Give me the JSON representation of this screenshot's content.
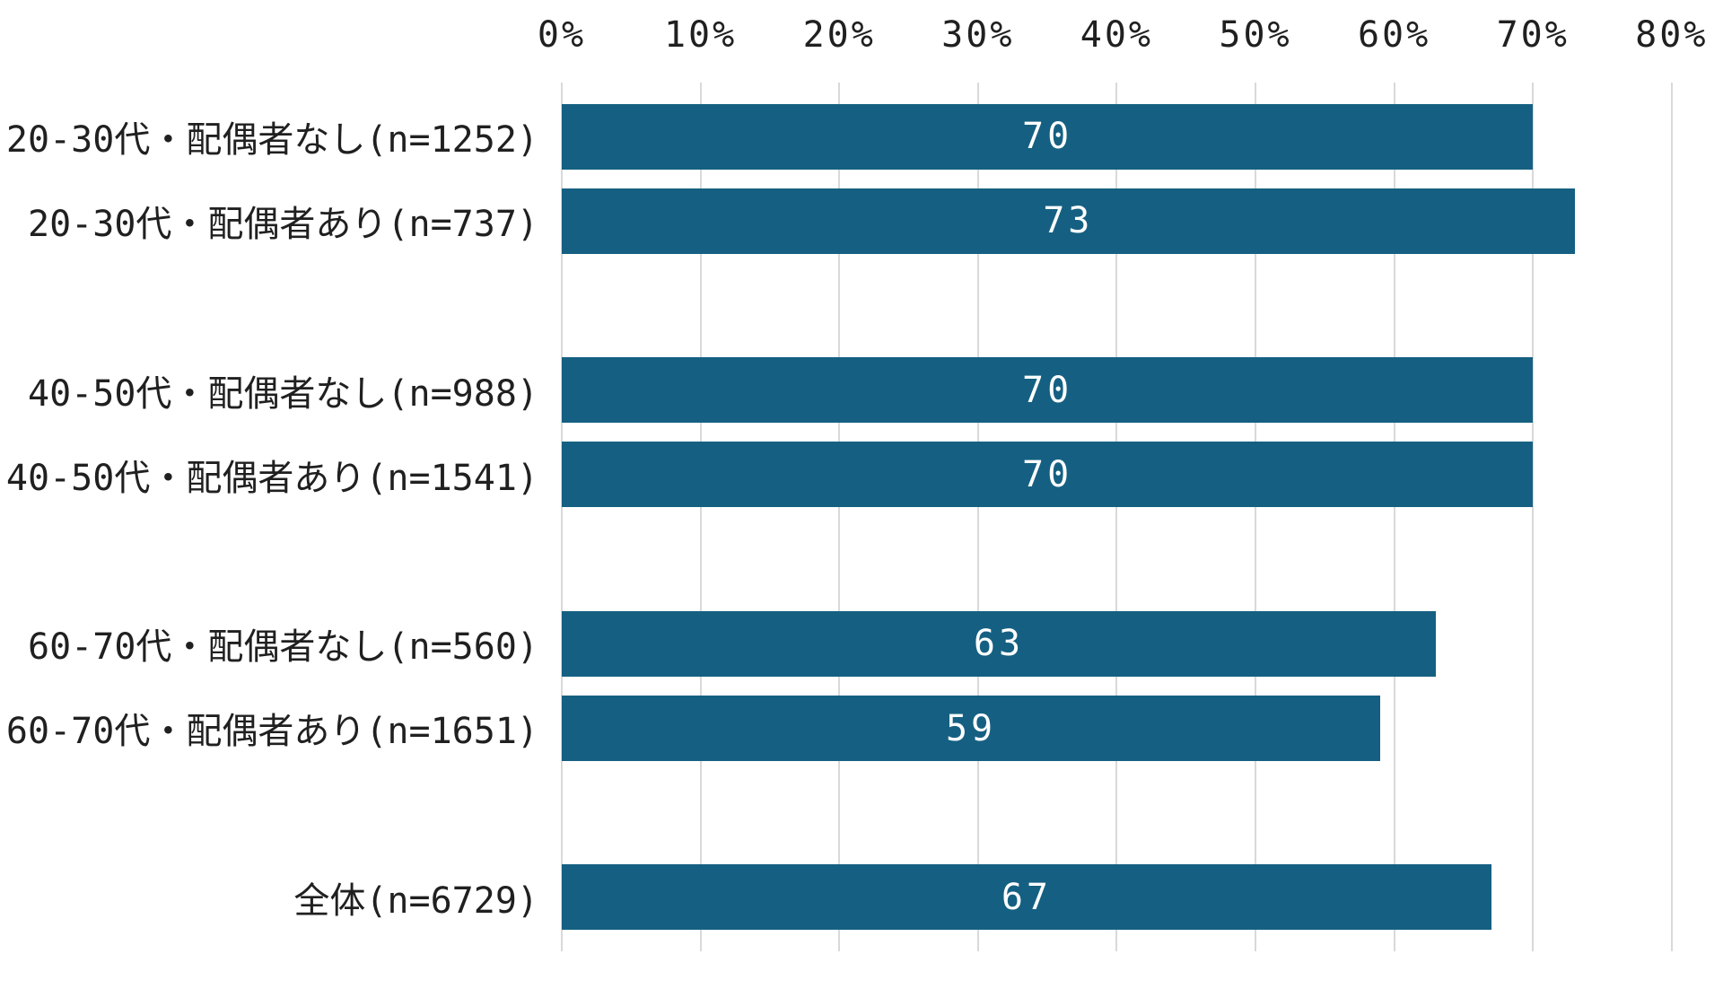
{
  "chart_data": {
    "type": "bar",
    "orientation": "horizontal",
    "title": "",
    "xlabel": "",
    "ylabel": "",
    "unit": "%",
    "grid": true,
    "legend": false,
    "x_axis": {
      "position": "top",
      "min": 0,
      "max": 80,
      "tick_step": 10,
      "ticks": [
        "0%",
        "10%",
        "20%",
        "30%",
        "40%",
        "50%",
        "60%",
        "70%",
        "80%"
      ]
    },
    "categories": [
      "20-30代・配偶者なし(n=1252)",
      "20-30代・配偶者あり(n=737)",
      "40-50代・配偶者なし(n=988)",
      "40-50代・配偶者あり(n=1541)",
      "60-70代・配偶者なし(n=560)",
      "60-70代・配偶者あり(n=1651)",
      "全体(n=6729)"
    ],
    "values": [
      70,
      73,
      70,
      70,
      63,
      59,
      67
    ],
    "rows": [
      {
        "label": "20-30代・配偶者なし(n=1252)",
        "value": 70,
        "slot": 0
      },
      {
        "label": "20-30代・配偶者あり(n=737)",
        "value": 73,
        "slot": 1
      },
      {
        "label": "40-50代・配偶者なし(n=988)",
        "value": 70,
        "slot": 3
      },
      {
        "label": "40-50代・配偶者あり(n=1541)",
        "value": 70,
        "slot": 4
      },
      {
        "label": "60-70代・配偶者なし(n=560)",
        "value": 63,
        "slot": 6
      },
      {
        "label": "60-70代・配偶者あり(n=1651)",
        "value": 59,
        "slot": 7
      },
      {
        "label": "全体(n=6729)",
        "value": 67,
        "slot": 9
      }
    ]
  },
  "colors": {
    "bar": "#156082",
    "value_label": "#ffffff",
    "axis_text": "#202020",
    "gridline": "#d9d9d9"
  }
}
